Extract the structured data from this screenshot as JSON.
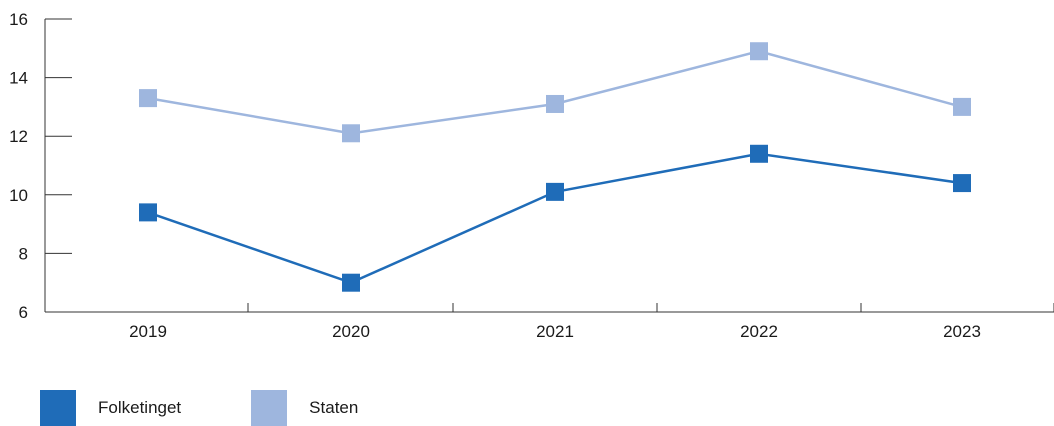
{
  "chart_data": {
    "type": "line",
    "x": [
      "2019",
      "2020",
      "2021",
      "2022",
      "2023"
    ],
    "series": [
      {
        "name": "Folketinget",
        "color": "#1f6cb8",
        "values": [
          9.4,
          7.0,
          10.1,
          11.4,
          10.4
        ]
      },
      {
        "name": "Staten",
        "color": "#9eb6de",
        "values": [
          13.3,
          12.1,
          13.1,
          14.9,
          13.0
        ]
      }
    ],
    "ylim": [
      6,
      16
    ],
    "yticks": [
      "6",
      "8",
      "10",
      "12",
      "14",
      "16"
    ],
    "title": "",
    "xlabel": "",
    "ylabel": "",
    "grid": false,
    "legend_position": "bottom-left",
    "marker": "square"
  }
}
